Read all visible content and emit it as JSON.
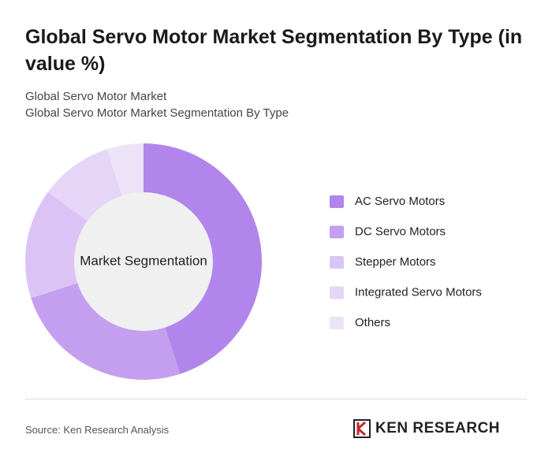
{
  "chart_data": {
    "type": "pie",
    "title": "Global Servo Motor Market Segmentation By Type (in value %)",
    "subtitle": [
      "Global Servo Motor Market",
      "Global Servo Motor Market Segmentation By Type"
    ],
    "center_label": "Market Segmentation",
    "categories": [
      "AC Servo Motors",
      "DC Servo Motors",
      "Stepper Motors",
      "Integrated Servo Motors",
      "Others"
    ],
    "values": [
      45,
      25,
      15,
      10,
      5
    ],
    "colors": [
      "#b285ec",
      "#c49ff0",
      "#dbc4f5",
      "#e5d5f7",
      "#ede3f9"
    ],
    "source": "Source: Ken Research Analysis"
  },
  "brand": "KEN RESEARCH"
}
